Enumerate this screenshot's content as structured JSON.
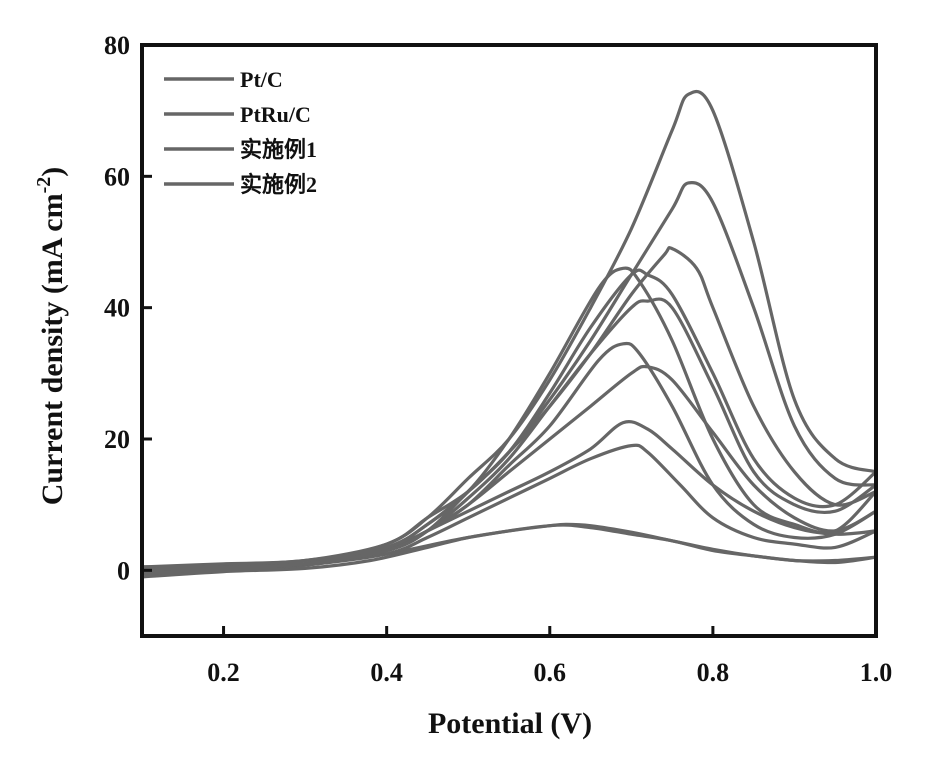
{
  "chart_data": {
    "type": "line",
    "xlabel": "Potential (V)",
    "ylabel": "Current density (mA cm",
    "ylabel_sup": "-2",
    "ylabel_end": ")",
    "xlim": [
      0.1,
      1.0
    ],
    "ylim": [
      -10,
      80
    ],
    "xticks": [
      "0.2",
      "0.4",
      "0.6",
      "0.8",
      "1.0"
    ],
    "yticks": [
      "0",
      "20",
      "40",
      "60",
      "80"
    ],
    "grid": false,
    "legend_position": "top-left",
    "line_color": "#666666",
    "series": [
      {
        "name": "Pt/C",
        "forward": [
          [
            0.1,
            -1
          ],
          [
            0.2,
            -0.2
          ],
          [
            0.3,
            0.3
          ],
          [
            0.38,
            1.5
          ],
          [
            0.45,
            3.5
          ],
          [
            0.5,
            5
          ],
          [
            0.55,
            6
          ],
          [
            0.6,
            6.8
          ],
          [
            0.62,
            7
          ],
          [
            0.65,
            6.8
          ],
          [
            0.7,
            5.8
          ],
          [
            0.75,
            4.5
          ],
          [
            0.8,
            3.2
          ],
          [
            0.85,
            2.2
          ],
          [
            0.9,
            1.5
          ],
          [
            0.95,
            1.5
          ],
          [
            1.0,
            2
          ]
        ],
        "backward": [
          [
            1.0,
            2
          ],
          [
            0.95,
            1.2
          ],
          [
            0.9,
            1.5
          ],
          [
            0.85,
            2.2
          ],
          [
            0.8,
            3
          ],
          [
            0.75,
            4.5
          ],
          [
            0.7,
            5.5
          ],
          [
            0.65,
            6.5
          ],
          [
            0.6,
            6.8
          ],
          [
            0.5,
            5
          ],
          [
            0.4,
            2.5
          ],
          [
            0.3,
            0.8
          ],
          [
            0.2,
            0
          ],
          [
            0.1,
            -0.5
          ]
        ]
      },
      {
        "name": "PtRu/C",
        "forward": [
          [
            0.1,
            -0.5
          ],
          [
            0.2,
            0.2
          ],
          [
            0.3,
            0.8
          ],
          [
            0.4,
            3
          ],
          [
            0.45,
            6
          ],
          [
            0.5,
            9
          ],
          [
            0.55,
            12
          ],
          [
            0.6,
            15
          ],
          [
            0.65,
            18.5
          ],
          [
            0.69,
            22.5
          ],
          [
            0.72,
            21.5
          ],
          [
            0.75,
            18.5
          ],
          [
            0.8,
            13
          ],
          [
            0.85,
            9
          ],
          [
            0.9,
            6.5
          ],
          [
            0.95,
            5.5
          ],
          [
            1.0,
            6
          ]
        ],
        "backward": [
          [
            1.0,
            6
          ],
          [
            0.95,
            3.5
          ],
          [
            0.9,
            4
          ],
          [
            0.85,
            5
          ],
          [
            0.8,
            8
          ],
          [
            0.76,
            13
          ],
          [
            0.72,
            18
          ],
          [
            0.7,
            19
          ],
          [
            0.65,
            17
          ],
          [
            0.6,
            14
          ],
          [
            0.55,
            11
          ],
          [
            0.5,
            8
          ],
          [
            0.45,
            5
          ],
          [
            0.4,
            2.5
          ],
          [
            0.3,
            0.8
          ],
          [
            0.2,
            0
          ],
          [
            0.1,
            0
          ]
        ]
      },
      {
        "name": "实施例1",
        "forward": [
          [
            0.1,
            0
          ],
          [
            0.2,
            0.5
          ],
          [
            0.3,
            1
          ],
          [
            0.4,
            3.5
          ],
          [
            0.45,
            6
          ],
          [
            0.5,
            10
          ],
          [
            0.55,
            15
          ],
          [
            0.6,
            20
          ],
          [
            0.65,
            25
          ],
          [
            0.7,
            30
          ],
          [
            0.72,
            31
          ],
          [
            0.75,
            29
          ],
          [
            0.8,
            21
          ],
          [
            0.85,
            13
          ],
          [
            0.9,
            8
          ],
          [
            0.95,
            6
          ],
          [
            1.0,
            9
          ]
        ],
        "backward": [
          [
            1.0,
            9
          ],
          [
            0.95,
            5.5
          ],
          [
            0.9,
            5
          ],
          [
            0.85,
            7
          ],
          [
            0.8,
            13
          ],
          [
            0.75,
            25
          ],
          [
            0.71,
            33
          ],
          [
            0.69,
            34.5
          ],
          [
            0.66,
            32
          ],
          [
            0.6,
            22
          ],
          [
            0.55,
            16
          ],
          [
            0.5,
            10
          ],
          [
            0.45,
            6
          ],
          [
            0.4,
            3
          ],
          [
            0.3,
            1
          ],
          [
            0.2,
            0.5
          ],
          [
            0.1,
            0
          ]
        ]
      },
      {
        "name": "实施例2",
        "forward": [
          [
            0.1,
            0.5
          ],
          [
            0.2,
            1
          ],
          [
            0.3,
            1.5
          ],
          [
            0.4,
            4
          ],
          [
            0.45,
            8
          ],
          [
            0.5,
            12
          ],
          [
            0.55,
            18
          ],
          [
            0.6,
            25
          ],
          [
            0.65,
            33
          ],
          [
            0.7,
            42
          ],
          [
            0.74,
            48
          ],
          [
            0.75,
            49
          ],
          [
            0.78,
            46
          ],
          [
            0.8,
            40
          ],
          [
            0.85,
            25
          ],
          [
            0.9,
            15
          ],
          [
            0.95,
            10
          ],
          [
            1.0,
            12
          ]
        ],
        "backward": [
          [
            1.0,
            12
          ],
          [
            0.95,
            6
          ],
          [
            0.9,
            7
          ],
          [
            0.85,
            10
          ],
          [
            0.8,
            20
          ],
          [
            0.75,
            35
          ],
          [
            0.71,
            44
          ],
          [
            0.69,
            46
          ],
          [
            0.66,
            43
          ],
          [
            0.6,
            30
          ],
          [
            0.55,
            20
          ],
          [
            0.5,
            12
          ],
          [
            0.45,
            7
          ],
          [
            0.4,
            3.5
          ],
          [
            0.3,
            1
          ],
          [
            0.2,
            0.5
          ],
          [
            0.1,
            0.5
          ]
        ]
      },
      {
        "name": "",
        "forward": [
          [
            0.1,
            0.5
          ],
          [
            0.2,
            0.8
          ],
          [
            0.3,
            1.5
          ],
          [
            0.4,
            3.5
          ],
          [
            0.45,
            7
          ],
          [
            0.5,
            12
          ],
          [
            0.55,
            18
          ],
          [
            0.6,
            26
          ],
          [
            0.65,
            35
          ],
          [
            0.7,
            45
          ],
          [
            0.75,
            55
          ],
          [
            0.77,
            59
          ],
          [
            0.8,
            56
          ],
          [
            0.85,
            40
          ],
          [
            0.9,
            22
          ],
          [
            0.95,
            14
          ],
          [
            1.0,
            13
          ]
        ],
        "backward": [
          [
            1.0,
            13
          ],
          [
            0.95,
            9
          ],
          [
            0.9,
            10
          ],
          [
            0.85,
            15
          ],
          [
            0.8,
            28
          ],
          [
            0.75,
            40
          ],
          [
            0.72,
            41
          ],
          [
            0.7,
            40
          ],
          [
            0.65,
            33
          ],
          [
            0.6,
            25
          ],
          [
            0.55,
            17
          ],
          [
            0.5,
            11
          ],
          [
            0.45,
            6
          ],
          [
            0.4,
            3
          ],
          [
            0.3,
            1
          ],
          [
            0.2,
            0.5
          ],
          [
            0.1,
            0.5
          ]
        ]
      },
      {
        "name": "",
        "forward": [
          [
            0.1,
            0.2
          ],
          [
            0.2,
            0.5
          ],
          [
            0.3,
            1
          ],
          [
            0.4,
            4
          ],
          [
            0.45,
            8
          ],
          [
            0.5,
            14
          ],
          [
            0.55,
            20
          ],
          [
            0.6,
            29
          ],
          [
            0.65,
            40
          ],
          [
            0.7,
            52
          ],
          [
            0.75,
            67
          ],
          [
            0.77,
            72.5
          ],
          [
            0.8,
            70
          ],
          [
            0.85,
            50
          ],
          [
            0.9,
            26
          ],
          [
            0.95,
            17
          ],
          [
            1.0,
            15
          ]
        ],
        "backward": [
          [
            1.0,
            15
          ],
          [
            0.95,
            10
          ],
          [
            0.9,
            11
          ],
          [
            0.85,
            17
          ],
          [
            0.8,
            30
          ],
          [
            0.75,
            42
          ],
          [
            0.72,
            45
          ],
          [
            0.7,
            45
          ],
          [
            0.65,
            37
          ],
          [
            0.6,
            27
          ],
          [
            0.55,
            18
          ],
          [
            0.5,
            12
          ],
          [
            0.45,
            6
          ],
          [
            0.4,
            3
          ],
          [
            0.3,
            1
          ],
          [
            0.2,
            0.3
          ],
          [
            0.1,
            0.2
          ]
        ]
      }
    ]
  }
}
